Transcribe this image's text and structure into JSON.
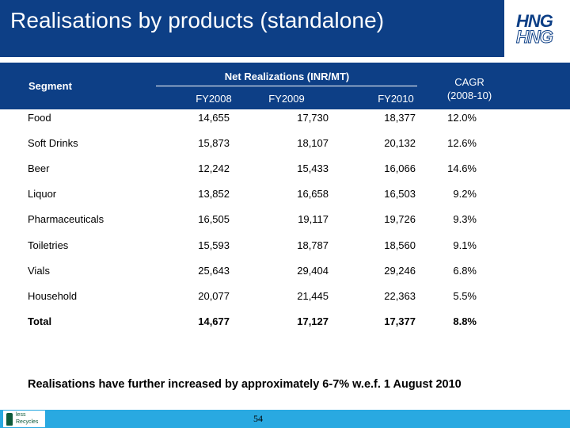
{
  "title": "Realisations by products (standalone)",
  "logo": {
    "line1": "HNG",
    "line2": "HNG"
  },
  "table": {
    "segment_header": "Segment",
    "group_header": "Net Realizations (INR/MT)",
    "years": [
      "FY2008",
      "FY2009",
      "FY2010"
    ],
    "cagr_header_line1": "CAGR",
    "cagr_header_line2": "(2008-10)",
    "rows": [
      {
        "segment": "Food",
        "fy2008": "14,655",
        "fy2009": "17,730",
        "fy2010": "18,377",
        "cagr": "12.0%"
      },
      {
        "segment": "Soft Drinks",
        "fy2008": "15,873",
        "fy2009": "18,107",
        "fy2010": "20,132",
        "cagr": "12.6%"
      },
      {
        "segment": "Beer",
        "fy2008": "12,242",
        "fy2009": "15,433",
        "fy2010": "16,066",
        "cagr": "14.6%"
      },
      {
        "segment": "Liquor",
        "fy2008": "13,852",
        "fy2009": "16,658",
        "fy2010": "16,503",
        "cagr": "9.2%"
      },
      {
        "segment": "Pharmaceuticals",
        "fy2008": "16,505",
        "fy2009": "19,117",
        "fy2010": "19,726",
        "cagr": "9.3%"
      },
      {
        "segment": "Toiletries",
        "fy2008": "15,593",
        "fy2009": "18,787",
        "fy2010": "18,560",
        "cagr": "9.1%"
      },
      {
        "segment": "Vials",
        "fy2008": "25,643",
        "fy2009": "29,404",
        "fy2010": "29,246",
        "cagr": "6.8%"
      },
      {
        "segment": "Household",
        "fy2008": "20,077",
        "fy2009": "21,445",
        "fy2010": "22,363",
        "cagr": "5.5%"
      }
    ],
    "total": {
      "segment": "Total",
      "fy2008": "14,677",
      "fy2009": "17,127",
      "fy2010": "17,377",
      "cagr": "8.8%"
    }
  },
  "note": "Realisations have further increased by approximately 6-7% w.e.f. 1 August 2010",
  "footer": {
    "logo_text_1": "less",
    "logo_text_2": "Recycles",
    "page_number": "54"
  },
  "colors": {
    "header_blue": "#0d3f86",
    "footer_blue": "#29a9e1"
  }
}
